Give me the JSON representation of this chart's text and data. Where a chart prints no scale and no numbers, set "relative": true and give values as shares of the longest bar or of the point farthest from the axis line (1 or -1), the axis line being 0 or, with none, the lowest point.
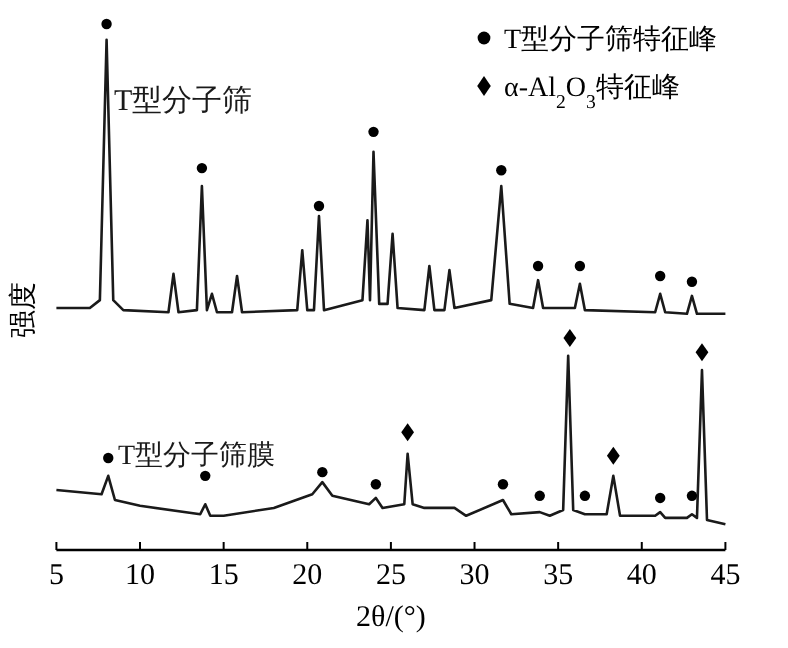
{
  "chart_data": {
    "type": "line",
    "relative": true,
    "xlabel": "2θ/(°)",
    "ylabel": "强度",
    "xlim": [
      5,
      45
    ],
    "xticks": [
      5,
      10,
      15,
      20,
      25,
      30,
      35,
      40,
      45
    ],
    "legend": "top right",
    "grid": false,
    "line_style": "solid",
    "series": [
      {
        "name": "T型分子筛",
        "color": "#1a1a1a",
        "x": [
          5,
          7,
          7.6,
          8.0,
          8.4,
          9,
          11.7,
          12.0,
          12.3,
          13.4,
          13.7,
          14.0,
          14.3,
          14.6,
          15.5,
          15.8,
          16.1,
          19.4,
          19.7,
          20.0,
          20.4,
          20.7,
          21.0,
          23.3,
          23.6,
          23.75,
          23.96,
          24.3,
          24.8,
          25.1,
          25.4,
          27.0,
          27.3,
          27.6,
          28.2,
          28.5,
          28.8,
          31.0,
          31.6,
          32.1,
          33.5,
          33.8,
          34.1,
          36.0,
          36.3,
          36.6,
          40.8,
          41.1,
          41.4,
          42.7,
          43.0,
          43.3,
          45
        ],
        "values": [
          0.46,
          0.46,
          0.475,
          0.97,
          0.475,
          0.456,
          0.452,
          0.525,
          0.452,
          0.456,
          0.692,
          0.456,
          0.487,
          0.452,
          0.452,
          0.521,
          0.452,
          0.456,
          0.57,
          0.456,
          0.456,
          0.635,
          0.456,
          0.475,
          0.627,
          0.475,
          0.757,
          0.468,
          0.468,
          0.601,
          0.46,
          0.456,
          0.54,
          0.456,
          0.456,
          0.532,
          0.46,
          0.475,
          0.692,
          0.468,
          0.46,
          0.513,
          0.46,
          0.46,
          0.506,
          0.456,
          0.452,
          0.487,
          0.452,
          0.449,
          0.483,
          0.449,
          0.449
        ]
      },
      {
        "name": "T型分子筛膜",
        "color": "#1a1a1a",
        "x": [
          5,
          7.7,
          8.1,
          8.5,
          10,
          13.6,
          13.9,
          14.2,
          15,
          18,
          20.3,
          20.9,
          21.5,
          23.7,
          24.1,
          24.5,
          25.8,
          26.0,
          26.3,
          27,
          28.8,
          29.5,
          31.7,
          32.2,
          33.9,
          34.5,
          35.3,
          35.6,
          35.9,
          36.6,
          37.9,
          38.3,
          38.7,
          40.8,
          41.1,
          41.4,
          42.7,
          43.0,
          43.3,
          43.6,
          43.9,
          45
        ],
        "values": [
          0.114,
          0.106,
          0.141,
          0.095,
          0.084,
          0.068,
          0.087,
          0.065,
          0.065,
          0.08,
          0.106,
          0.129,
          0.103,
          0.087,
          0.099,
          0.08,
          0.087,
          0.183,
          0.087,
          0.08,
          0.08,
          0.065,
          0.095,
          0.068,
          0.072,
          0.065,
          0.076,
          0.369,
          0.076,
          0.068,
          0.068,
          0.141,
          0.065,
          0.065,
          0.072,
          0.061,
          0.061,
          0.068,
          0.061,
          0.342,
          0.057,
          0.049
        ]
      },
      {
        "name": "T型分子筛特征峰",
        "type": "scatter",
        "marker": "circle",
        "color": "#000000",
        "x": [
          8.0,
          13.7,
          20.7,
          23.96,
          31.6,
          33.8,
          36.3,
          41.1,
          43.0,
          8.1,
          13.9,
          20.9,
          24.1,
          31.7,
          33.9,
          36.6,
          41.1,
          43.0
        ],
        "values": [
          1.0,
          0.726,
          0.654,
          0.795,
          0.722,
          0.54,
          0.54,
          0.521,
          0.51,
          0.175,
          0.141,
          0.148,
          0.125,
          0.125,
          0.103,
          0.103,
          0.099,
          0.103
        ]
      },
      {
        "name": "α-Al$_{2}$O$_{3}$特征峰",
        "type": "scatter",
        "marker": "diamond",
        "color": "#000000",
        "x": [
          26.0,
          35.7,
          38.3,
          43.6
        ],
        "values": [
          0.224,
          0.403,
          0.179,
          0.376
        ]
      }
    ]
  }
}
